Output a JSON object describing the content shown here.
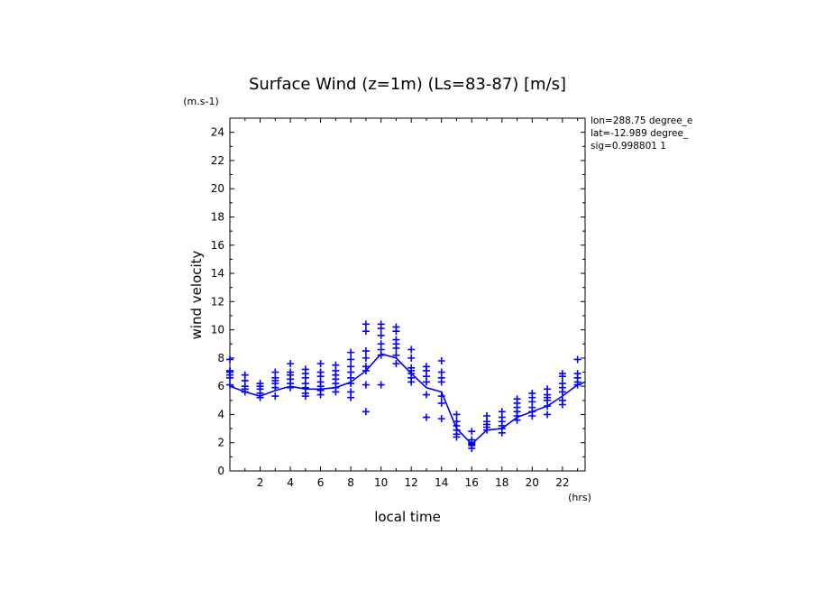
{
  "chart_data": {
    "type": "scatter",
    "title": "Surface Wind (z=1m) (Ls=83-87) [m/s]",
    "xlabel": "local time",
    "ylabel": "wind velocity",
    "x_unit": "(hrs)",
    "y_unit": "(m.s-1)",
    "xlim": [
      0,
      23.5
    ],
    "ylim": [
      0,
      25
    ],
    "x_ticks": [
      2,
      4,
      6,
      8,
      10,
      12,
      14,
      16,
      18,
      20,
      22
    ],
    "y_ticks": [
      0,
      2,
      4,
      6,
      8,
      10,
      12,
      14,
      16,
      18,
      20,
      22,
      24
    ],
    "grid": false,
    "annotations": [
      "lon=288.75 degree_e",
      "lat=-12.989 degree_",
      "sig=0.998801 1"
    ],
    "color": "#0000ff",
    "series": [
      {
        "marker": "plus",
        "points": [
          [
            0,
            7.9
          ],
          [
            0,
            7.1
          ],
          [
            0,
            6.8
          ],
          [
            0,
            6.6
          ],
          [
            0,
            6.1
          ],
          [
            0,
            7.0
          ],
          [
            1,
            6.8
          ],
          [
            1,
            6.4
          ],
          [
            1,
            6.0
          ],
          [
            1,
            5.8
          ],
          [
            1,
            5.6
          ],
          [
            2,
            6.2
          ],
          [
            2,
            6.0
          ],
          [
            2,
            5.8
          ],
          [
            2,
            5.5
          ],
          [
            2,
            5.2
          ],
          [
            3,
            7.0
          ],
          [
            3,
            6.6
          ],
          [
            3,
            6.4
          ],
          [
            3,
            6.2
          ],
          [
            3,
            5.9
          ],
          [
            3,
            5.3
          ],
          [
            4,
            7.6
          ],
          [
            4,
            7.0
          ],
          [
            4,
            6.8
          ],
          [
            4,
            6.5
          ],
          [
            4,
            6.2
          ],
          [
            4,
            5.9
          ],
          [
            5,
            7.2
          ],
          [
            5,
            6.9
          ],
          [
            5,
            6.6
          ],
          [
            5,
            6.2
          ],
          [
            5,
            5.9
          ],
          [
            5,
            5.5
          ],
          [
            5,
            5.3
          ],
          [
            6,
            7.6
          ],
          [
            6,
            7.0
          ],
          [
            6,
            6.7
          ],
          [
            6,
            6.3
          ],
          [
            6,
            6.0
          ],
          [
            6,
            5.7
          ],
          [
            6,
            5.4
          ],
          [
            7,
            7.5
          ],
          [
            7,
            7.1
          ],
          [
            7,
            6.8
          ],
          [
            7,
            6.5
          ],
          [
            7,
            6.2
          ],
          [
            7,
            5.9
          ],
          [
            7,
            5.6
          ],
          [
            8,
            8.4
          ],
          [
            8,
            7.9
          ],
          [
            8,
            7.4
          ],
          [
            8,
            7.0
          ],
          [
            8,
            6.6
          ],
          [
            8,
            6.2
          ],
          [
            8,
            5.6
          ],
          [
            8,
            5.2
          ],
          [
            9,
            10.4
          ],
          [
            9,
            9.9
          ],
          [
            9,
            8.5
          ],
          [
            9,
            8.0
          ],
          [
            9,
            7.4
          ],
          [
            9,
            7.1
          ],
          [
            9,
            6.1
          ],
          [
            9,
            4.2
          ],
          [
            10,
            10.4
          ],
          [
            10,
            10.1
          ],
          [
            10,
            9.6
          ],
          [
            10,
            9.0
          ],
          [
            10,
            8.6
          ],
          [
            10,
            8.2
          ],
          [
            10,
            6.1
          ],
          [
            11,
            10.2
          ],
          [
            11,
            9.9
          ],
          [
            11,
            9.3
          ],
          [
            11,
            9.0
          ],
          [
            11,
            8.7
          ],
          [
            11,
            8.2
          ],
          [
            11,
            7.6
          ],
          [
            12,
            8.6
          ],
          [
            12,
            8.0
          ],
          [
            12,
            7.3
          ],
          [
            12,
            7.1
          ],
          [
            12,
            6.9
          ],
          [
            12,
            6.6
          ],
          [
            12,
            6.3
          ],
          [
            13,
            7.4
          ],
          [
            13,
            7.1
          ],
          [
            13,
            6.7
          ],
          [
            13,
            6.3
          ],
          [
            13,
            5.4
          ],
          [
            13,
            3.8
          ],
          [
            14,
            7.8
          ],
          [
            14,
            7.0
          ],
          [
            14,
            6.6
          ],
          [
            14,
            6.3
          ],
          [
            14,
            5.3
          ],
          [
            14,
            4.8
          ],
          [
            14,
            3.7
          ],
          [
            15,
            4.0
          ],
          [
            15,
            3.5
          ],
          [
            15,
            3.2
          ],
          [
            15,
            2.9
          ],
          [
            15,
            2.6
          ],
          [
            15,
            2.4
          ],
          [
            16,
            2.8
          ],
          [
            16,
            2.2
          ],
          [
            16,
            2.0
          ],
          [
            16,
            1.9
          ],
          [
            16,
            1.8
          ],
          [
            16,
            1.6
          ],
          [
            17,
            3.9
          ],
          [
            17,
            3.5
          ],
          [
            17,
            3.3
          ],
          [
            17,
            3.1
          ],
          [
            17,
            2.9
          ],
          [
            18,
            4.2
          ],
          [
            18,
            3.8
          ],
          [
            18,
            3.5
          ],
          [
            18,
            3.2
          ],
          [
            18,
            3.0
          ],
          [
            18,
            2.7
          ],
          [
            19,
            5.1
          ],
          [
            19,
            4.8
          ],
          [
            19,
            4.5
          ],
          [
            19,
            4.2
          ],
          [
            19,
            3.9
          ],
          [
            19,
            3.6
          ],
          [
            20,
            5.5
          ],
          [
            20,
            5.2
          ],
          [
            20,
            4.9
          ],
          [
            20,
            4.5
          ],
          [
            20,
            4.2
          ],
          [
            20,
            3.9
          ],
          [
            21,
            5.8
          ],
          [
            21,
            5.4
          ],
          [
            21,
            5.2
          ],
          [
            21,
            5.0
          ],
          [
            21,
            4.6
          ],
          [
            21,
            4.0
          ],
          [
            22,
            6.9
          ],
          [
            22,
            6.7
          ],
          [
            22,
            6.2
          ],
          [
            22,
            5.9
          ],
          [
            22,
            5.6
          ],
          [
            22,
            5.0
          ],
          [
            22,
            4.7
          ],
          [
            23,
            7.9
          ],
          [
            23,
            6.9
          ],
          [
            23,
            6.6
          ],
          [
            23,
            6.3
          ],
          [
            23,
            6.1
          ]
        ]
      },
      {
        "marker": "line",
        "x": [
          0,
          1,
          2,
          3,
          4,
          5,
          6,
          7,
          8,
          9,
          10,
          11,
          12,
          13,
          14,
          15,
          16,
          17,
          18,
          19,
          20,
          21,
          22,
          23,
          23.5
        ],
        "y": [
          6.0,
          5.6,
          5.3,
          5.7,
          6.0,
          5.8,
          5.8,
          5.9,
          6.3,
          7.1,
          8.3,
          8.0,
          6.9,
          5.9,
          5.6,
          3.0,
          1.9,
          2.9,
          3.0,
          3.8,
          4.2,
          4.6,
          5.3,
          6.1,
          6.3
        ]
      }
    ]
  }
}
